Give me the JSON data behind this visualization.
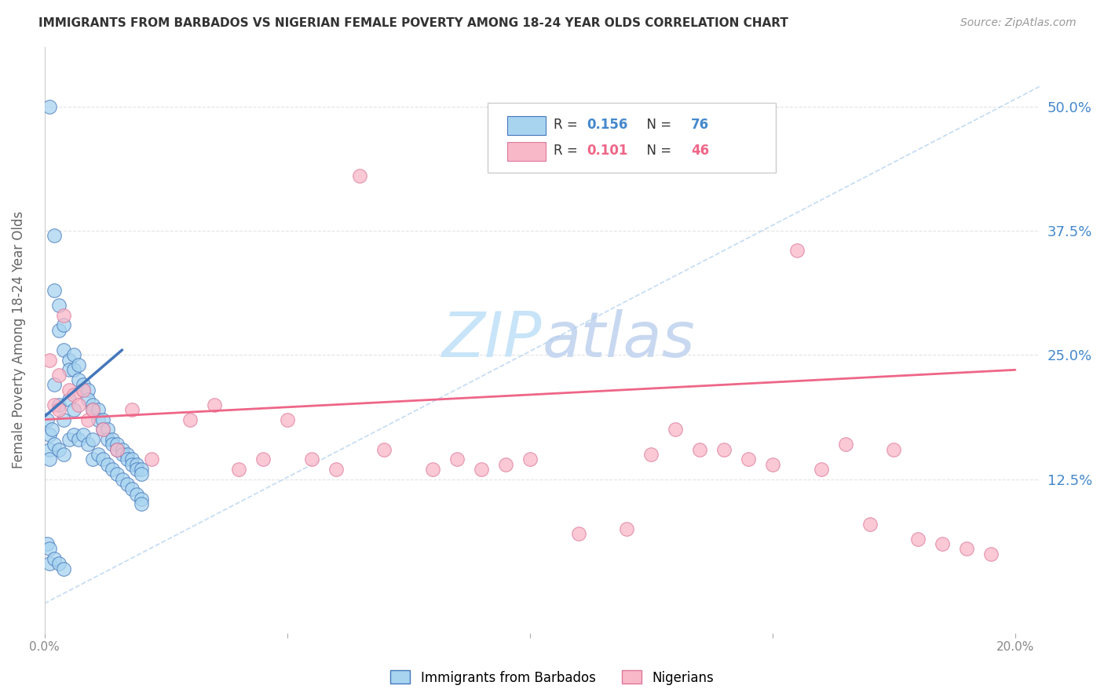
{
  "title": "IMMIGRANTS FROM BARBADOS VS NIGERIAN FEMALE POVERTY AMONG 18-24 YEAR OLDS CORRELATION CHART",
  "source": "Source: ZipAtlas.com",
  "ylabel": "Female Poverty Among 18-24 Year Olds",
  "ytick_labels": [
    "50.0%",
    "37.5%",
    "25.0%",
    "12.5%"
  ],
  "ytick_values": [
    0.5,
    0.375,
    0.25,
    0.125
  ],
  "xlim": [
    0.0,
    0.205
  ],
  "ylim": [
    -0.03,
    0.56
  ],
  "color_blue": "#A8D4F0",
  "color_pink": "#F9B8C8",
  "trendline_blue_color": "#4477BB",
  "trendline_pink_color": "#EE6688",
  "watermark_zip": "#C8E4F8",
  "watermark_atlas": "#C8D8F0",
  "legend_blue_r": "0.156",
  "legend_blue_n": "76",
  "legend_pink_r": "0.101",
  "legend_pink_n": "46",
  "barbados_x": [
    0.0005,
    0.001,
    0.001,
    0.001,
    0.001,
    0.0015,
    0.002,
    0.002,
    0.002,
    0.002,
    0.003,
    0.003,
    0.003,
    0.003,
    0.004,
    0.004,
    0.004,
    0.004,
    0.005,
    0.005,
    0.005,
    0.005,
    0.006,
    0.006,
    0.006,
    0.006,
    0.007,
    0.007,
    0.007,
    0.008,
    0.008,
    0.008,
    0.009,
    0.009,
    0.009,
    0.01,
    0.01,
    0.01,
    0.01,
    0.011,
    0.011,
    0.011,
    0.012,
    0.012,
    0.012,
    0.013,
    0.013,
    0.013,
    0.014,
    0.014,
    0.014,
    0.015,
    0.015,
    0.015,
    0.016,
    0.016,
    0.016,
    0.017,
    0.017,
    0.017,
    0.018,
    0.018,
    0.018,
    0.019,
    0.019,
    0.019,
    0.02,
    0.02,
    0.02,
    0.02,
    0.0005,
    0.001,
    0.001,
    0.002,
    0.003,
    0.004
  ],
  "barbados_y": [
    0.185,
    0.5,
    0.17,
    0.155,
    0.145,
    0.175,
    0.37,
    0.315,
    0.22,
    0.16,
    0.3,
    0.275,
    0.2,
    0.155,
    0.28,
    0.255,
    0.185,
    0.15,
    0.245,
    0.235,
    0.205,
    0.165,
    0.25,
    0.235,
    0.195,
    0.17,
    0.24,
    0.225,
    0.165,
    0.22,
    0.215,
    0.17,
    0.215,
    0.205,
    0.16,
    0.2,
    0.195,
    0.165,
    0.145,
    0.195,
    0.185,
    0.15,
    0.185,
    0.175,
    0.145,
    0.175,
    0.165,
    0.14,
    0.165,
    0.16,
    0.135,
    0.16,
    0.155,
    0.13,
    0.155,
    0.15,
    0.125,
    0.15,
    0.145,
    0.12,
    0.145,
    0.14,
    0.115,
    0.14,
    0.135,
    0.11,
    0.135,
    0.13,
    0.105,
    0.1,
    0.06,
    0.055,
    0.04,
    0.045,
    0.04,
    0.035
  ],
  "nigerian_x": [
    0.001,
    0.002,
    0.003,
    0.004,
    0.005,
    0.006,
    0.007,
    0.008,
    0.009,
    0.01,
    0.012,
    0.015,
    0.018,
    0.022,
    0.03,
    0.035,
    0.04,
    0.045,
    0.05,
    0.055,
    0.06,
    0.065,
    0.07,
    0.08,
    0.085,
    0.09,
    0.095,
    0.1,
    0.11,
    0.12,
    0.125,
    0.13,
    0.135,
    0.14,
    0.145,
    0.15,
    0.155,
    0.16,
    0.165,
    0.17,
    0.175,
    0.18,
    0.185,
    0.19,
    0.195,
    0.003
  ],
  "nigerian_y": [
    0.245,
    0.2,
    0.195,
    0.29,
    0.215,
    0.21,
    0.2,
    0.215,
    0.185,
    0.195,
    0.175,
    0.155,
    0.195,
    0.145,
    0.185,
    0.2,
    0.135,
    0.145,
    0.185,
    0.145,
    0.135,
    0.43,
    0.155,
    0.135,
    0.145,
    0.135,
    0.14,
    0.145,
    0.07,
    0.075,
    0.15,
    0.175,
    0.155,
    0.155,
    0.145,
    0.14,
    0.355,
    0.135,
    0.16,
    0.08,
    0.155,
    0.065,
    0.06,
    0.055,
    0.05,
    0.23
  ],
  "blue_trend_x": [
    0.0,
    0.016
  ],
  "blue_trend_y": [
    0.188,
    0.255
  ],
  "pink_trend_x": [
    0.0,
    0.2
  ],
  "pink_trend_y": [
    0.185,
    0.235
  ]
}
